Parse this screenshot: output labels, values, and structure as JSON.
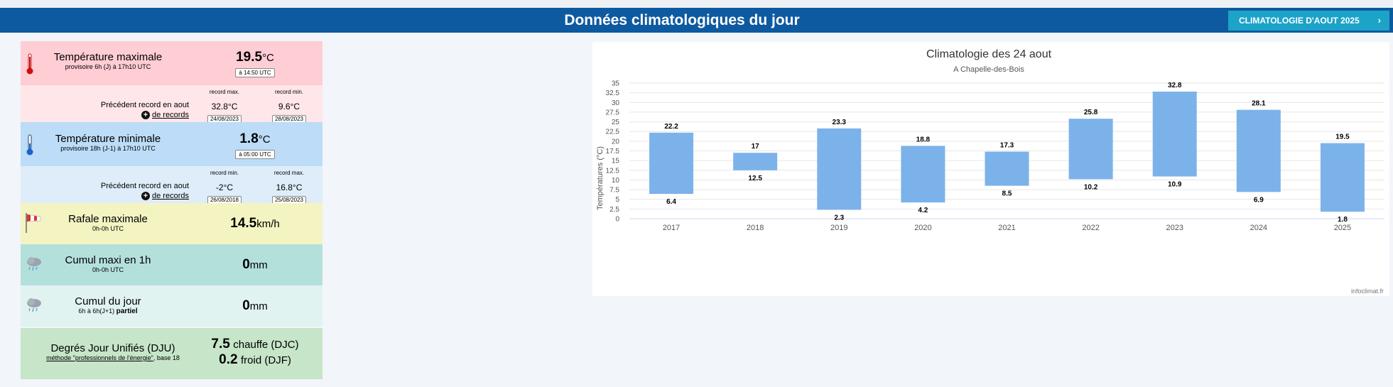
{
  "header": {
    "title": "Données climatologiques du jour",
    "button_label": "CLIMATOLOGIE D'AOUT 2025",
    "button_chevron": "›"
  },
  "tmax": {
    "title": "Température maximale",
    "subtitle": "provisoire 6h (J) à 17h10 UTC",
    "value": "19.5",
    "unit": "°C",
    "time": "à 14:50 UTC"
  },
  "tmax_records": {
    "label": "Précédent record en aout",
    "more": "de records",
    "max_head": "record max.",
    "max_value": "32.8°C",
    "max_date": "24/08/2023",
    "min_head": "record min.",
    "min_value": "9.6°C",
    "min_date": "28/08/2023"
  },
  "tmin": {
    "title": "Température minimale",
    "subtitle": "provisoire 18h (J-1) à 17h10 UTC",
    "value": "1.8",
    "unit": "°C",
    "time": "à 05:00 UTC"
  },
  "tmin_records": {
    "label": "Précédent record en aout",
    "more": "de records",
    "min_head": "record min.",
    "min_value": "-2°C",
    "min_date": "26/08/2018",
    "max_head": "record max.",
    "max_value": "16.8°C",
    "max_date": "25/08/2023"
  },
  "wind": {
    "title": "Rafale maximale",
    "subtitle": "0h-0h UTC",
    "value": "14.5",
    "unit": "km/h"
  },
  "rain_hour": {
    "title": "Cumul maxi en 1h",
    "subtitle": "0h-0h UTC",
    "value": "0",
    "unit": "mm"
  },
  "rain_day": {
    "title": "Cumul du jour",
    "subtitle": "6h à 6h(J+1)",
    "subtitle_bold": "partiel",
    "value": "0",
    "unit": "mm"
  },
  "dju": {
    "title": "Degrés Jour Unifiés (DJU)",
    "subtitle_link": "méthode \"professionnels de l'énergie\"",
    "subtitle_rest": ", base 18",
    "heat_value": "7.5",
    "heat_label": "chauffe (DJC)",
    "cold_value": "0.2",
    "cold_label": "froid (DJF)"
  },
  "icons": {
    "tmax": "thermometer-hot-icon",
    "tmin": "thermometer-cold-icon",
    "wind": "windsock-icon",
    "rain": "rain-cloud-icon",
    "plus": "plus-circle-icon"
  },
  "chart_data": {
    "type": "bar",
    "title": "Climatologie des 24 aout",
    "subtitle": "A Chapelle-des-Bois",
    "ylabel": "Températures (°C)",
    "xlabel": "",
    "credits": "infoclimat.fr",
    "ylim": [
      0,
      35
    ],
    "yticks": [
      "0",
      "2.5",
      "5",
      "7.5",
      "10",
      "12.5",
      "15",
      "17.5",
      "20",
      "22.5",
      "25",
      "27.5",
      "30",
      "32.5",
      "35"
    ],
    "categories": [
      "2017",
      "2018",
      "2019",
      "2020",
      "2021",
      "2022",
      "2023",
      "2024",
      "2025"
    ],
    "series": [
      {
        "low": [
          6.4,
          12.5,
          2.3,
          4.2,
          8.5,
          10.2,
          10.9,
          6.9,
          1.8
        ]
      },
      {
        "high": [
          22.2,
          17,
          23.3,
          18.8,
          17.3,
          25.8,
          32.8,
          28.1,
          19.5
        ]
      }
    ],
    "bar_color": "#7cb2ea",
    "grid": true,
    "legend": "none"
  }
}
